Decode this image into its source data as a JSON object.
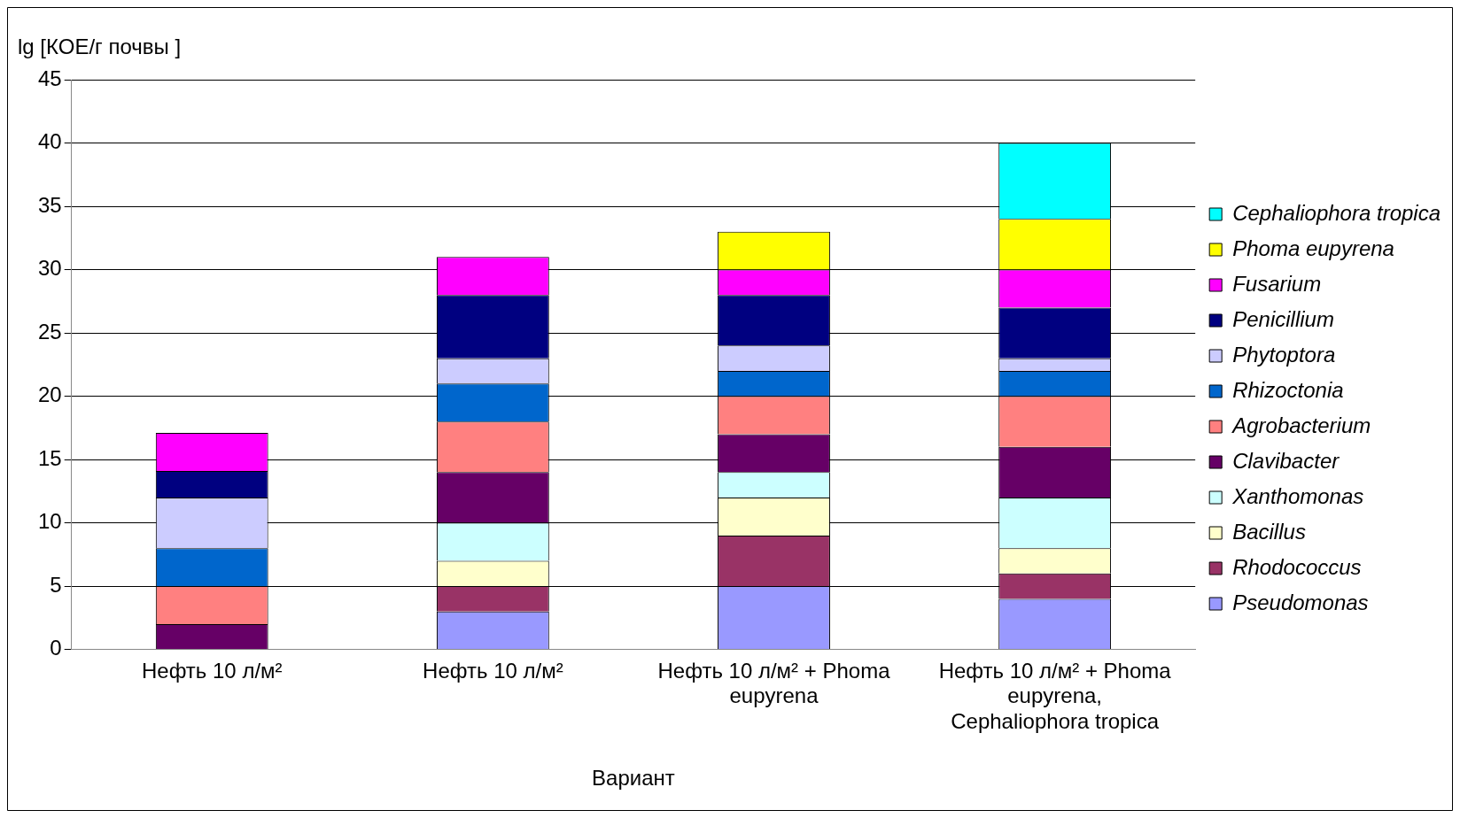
{
  "chart_data": {
    "type": "bar",
    "stacked": true,
    "ylabel": "lg [КОЕ/г почвы ]",
    "xlabel": "Вариант",
    "categories": [
      "Нефть 10 л/м²",
      "Нефть 10 л/м²",
      "Нефть 10 л/м² + Phoma eupyrena",
      "Нефть 10 л/м² + Phoma eupyrena, Cephaliophora tropica"
    ],
    "series": [
      {
        "name": "Pseudomonas",
        "color": "#9999ff",
        "values": [
          0,
          3,
          5,
          4
        ]
      },
      {
        "name": "Rhodococcus",
        "color": "#993366",
        "values": [
          0,
          2,
          4,
          2
        ]
      },
      {
        "name": "Bacillus",
        "color": "#ffffcc",
        "values": [
          0,
          2,
          3,
          2
        ]
      },
      {
        "name": "Xanthomonas",
        "color": "#ccffff",
        "values": [
          0,
          3,
          2,
          4
        ]
      },
      {
        "name": "Clavibacter",
        "color": "#660066",
        "values": [
          2,
          4,
          3,
          4
        ]
      },
      {
        "name": "Agrobacterium",
        "color": "#ff8080",
        "values": [
          3,
          4,
          3,
          4
        ]
      },
      {
        "name": "Rhizoctonia",
        "color": "#0066cc",
        "values": [
          3,
          3,
          2,
          2
        ]
      },
      {
        "name": "Phytoptora",
        "color": "#ccccff",
        "values": [
          4,
          2,
          2,
          1
        ]
      },
      {
        "name": "Penicillium",
        "color": "#000080",
        "values": [
          2.1,
          5,
          4,
          4
        ]
      },
      {
        "name": "Fusarium",
        "color": "#ff00ff",
        "values": [
          3,
          3,
          2,
          3
        ]
      },
      {
        "name": "Phoma eupyrena",
        "color": "#ffff00",
        "values": [
          0,
          0,
          3,
          4
        ]
      },
      {
        "name": "Cephaliophora tropica",
        "color": "#00ffff",
        "values": [
          0,
          0,
          0,
          6
        ]
      }
    ],
    "ylim": [
      0,
      45
    ],
    "yticks": [
      0,
      5,
      10,
      15,
      20,
      25,
      30,
      35,
      40,
      45
    ],
    "grid": "y",
    "legend": "right"
  }
}
